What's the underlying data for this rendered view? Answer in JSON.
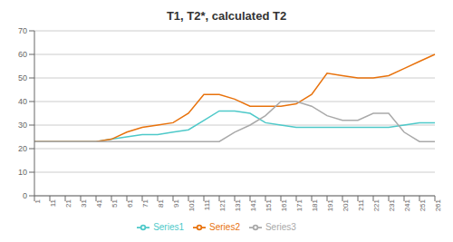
{
  "chart_data": {
    "type": "line",
    "title": "T1, T2*, calculated T2",
    "categories": [
      1,
      11,
      21,
      31,
      41,
      51,
      61,
      71,
      81,
      91,
      101,
      111,
      121,
      131,
      141,
      151,
      161,
      171,
      181,
      191,
      201,
      211,
      221,
      231,
      241,
      251,
      261
    ],
    "series": [
      {
        "name": "Series1",
        "color": "#4EC9C9",
        "values": [
          23,
          23,
          23,
          23,
          23,
          24,
          25,
          26,
          26,
          27,
          28,
          32,
          36,
          36,
          35,
          31,
          30,
          29,
          29,
          29,
          29,
          29,
          29,
          29,
          30,
          31,
          31
        ]
      },
      {
        "name": "Series2",
        "color": "#E8720C",
        "values": [
          23,
          23,
          23,
          23,
          23,
          24,
          27,
          29,
          30,
          31,
          35,
          43,
          43,
          41,
          38,
          38,
          38,
          39,
          43,
          52,
          51,
          50,
          50,
          51,
          54,
          57,
          60
        ]
      },
      {
        "name": "Series3",
        "color": "#A9A9A9",
        "values": [
          23,
          23,
          23,
          23,
          23,
          23,
          23,
          23,
          23,
          23,
          23,
          23,
          23,
          27,
          30,
          34,
          40,
          40,
          38,
          34,
          32,
          32,
          35,
          35,
          27,
          23,
          23
        ]
      }
    ],
    "ylim": [
      0,
      70
    ],
    "yticks": [
      0,
      10,
      20,
      30,
      40,
      50,
      60,
      70
    ],
    "grid": true,
    "legend": "bottom"
  }
}
